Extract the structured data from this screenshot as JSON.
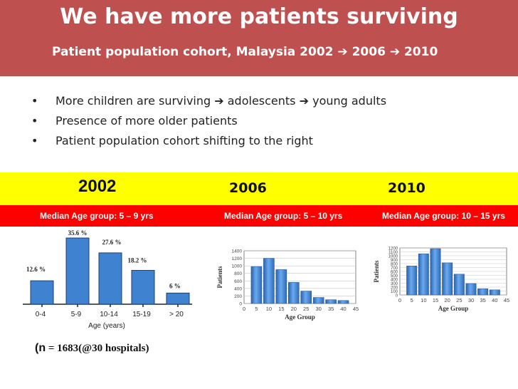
{
  "header": {
    "title": "We have more patients surviving",
    "subtitle": "Patient population cohort, Malaysia 2002 ➔ 2006 ➔ 2010"
  },
  "bullets": [
    "More children are surviving ➔ adolescents ➔ young adults",
    "Presence of more older patients",
    "Patient population cohort shifting to the right"
  ],
  "bullet_symbol": "•",
  "years": [
    "2002",
    "2006",
    "2010"
  ],
  "median_labels": [
    "Median Age group: 5 – 9 yrs",
    "Median Age group: 5 – 10 yrs",
    "Median Age group: 10 – 15 yrs"
  ],
  "colors": {
    "banner": "#be5050",
    "yellow": "#ffff00",
    "red": "#ff0000",
    "bar": "#3f82d0"
  },
  "note": {
    "prefix": "(n",
    "rest": " = 1683(@30 hospitals)"
  },
  "chart_data": [
    {
      "type": "bar",
      "title": "2002",
      "categories": [
        "0-4",
        "5-9",
        "10-14",
        "15-19",
        "> 20"
      ],
      "values": [
        12.6,
        35.6,
        27.6,
        18.2,
        6
      ],
      "data_labels": [
        "12.6 %",
        "35.6 %",
        "27.6 %",
        "18.2 %",
        "6 %"
      ],
      "xlabel": "Age (years)",
      "ylabel": "",
      "ylim": [
        0,
        36
      ]
    },
    {
      "type": "bar",
      "title": "2006",
      "x": [
        5,
        10,
        15,
        20,
        25,
        30,
        35,
        40
      ],
      "values": [
        980,
        1200,
        900,
        560,
        330,
        160,
        100,
        80
      ],
      "xticks": [
        "0",
        "5",
        "10",
        "15",
        "20",
        "25",
        "30",
        "35",
        "40",
        "45"
      ],
      "yticks": [
        "0",
        "200",
        "400",
        "600",
        "800",
        "1000",
        "1200",
        "1400"
      ],
      "xlabel": "Age Group",
      "ylabel": "Patients",
      "xlim": [
        0,
        45
      ],
      "ylim": [
        0,
        1400
      ]
    },
    {
      "type": "bar",
      "title": "2010",
      "x": [
        5,
        10,
        15,
        20,
        25,
        30,
        35,
        40
      ],
      "values": [
        740,
        1050,
        1180,
        820,
        530,
        290,
        160,
        130
      ],
      "xticks": [
        "0",
        "5",
        "10",
        "15",
        "20",
        "25",
        "30",
        "35",
        "40",
        "45"
      ],
      "yticks": [
        "0",
        "100",
        "200",
        "300",
        "400",
        "500",
        "600",
        "700",
        "800",
        "900",
        "1000",
        "1100",
        "1200"
      ],
      "xlabel": "Age Group",
      "ylabel": "Patients",
      "xlim": [
        0,
        45
      ],
      "ylim": [
        0,
        1200
      ]
    }
  ]
}
